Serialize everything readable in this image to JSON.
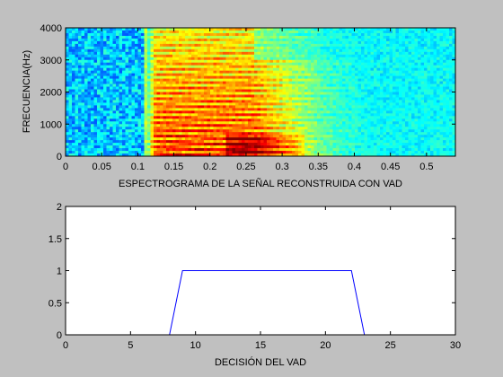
{
  "figure": {
    "background": "#c0c0c0"
  },
  "chart_data": [
    {
      "type": "heatmap",
      "title": "",
      "xlabel": "ESPECTROGRAMA DE LA SEÑAL RECONSTRUIDA CON VAD",
      "ylabel": "FRECUENCIA(Hz)",
      "xlim": [
        0,
        0.54
      ],
      "ylim": [
        0,
        4000
      ],
      "xticks": [
        "0",
        "0.05",
        "0.1",
        "0.15",
        "0.2",
        "0.25",
        "0.3",
        "0.35",
        "0.4",
        "0.45",
        "0.5"
      ],
      "yticks": [
        "0",
        "1000",
        "2000",
        "3000",
        "4000"
      ],
      "colormap": "jet",
      "speech_onset": 0.115,
      "speech_offset": 0.36,
      "grid": false
    },
    {
      "type": "line",
      "title": "",
      "xlabel": "DECISIÓN DEL VAD",
      "ylabel": "",
      "xlim": [
        0,
        30
      ],
      "ylim": [
        0,
        2
      ],
      "xticks": [
        "0",
        "5",
        "10",
        "15",
        "20",
        "25",
        "30"
      ],
      "yticks": [
        "0",
        "0.5",
        "1",
        "1.5",
        "2"
      ],
      "grid": false,
      "series": [
        {
          "color": "#0000ff",
          "x": [
            0,
            8,
            9,
            22,
            23,
            30
          ],
          "y": [
            0,
            0,
            1,
            1,
            0,
            0
          ]
        }
      ]
    }
  ]
}
